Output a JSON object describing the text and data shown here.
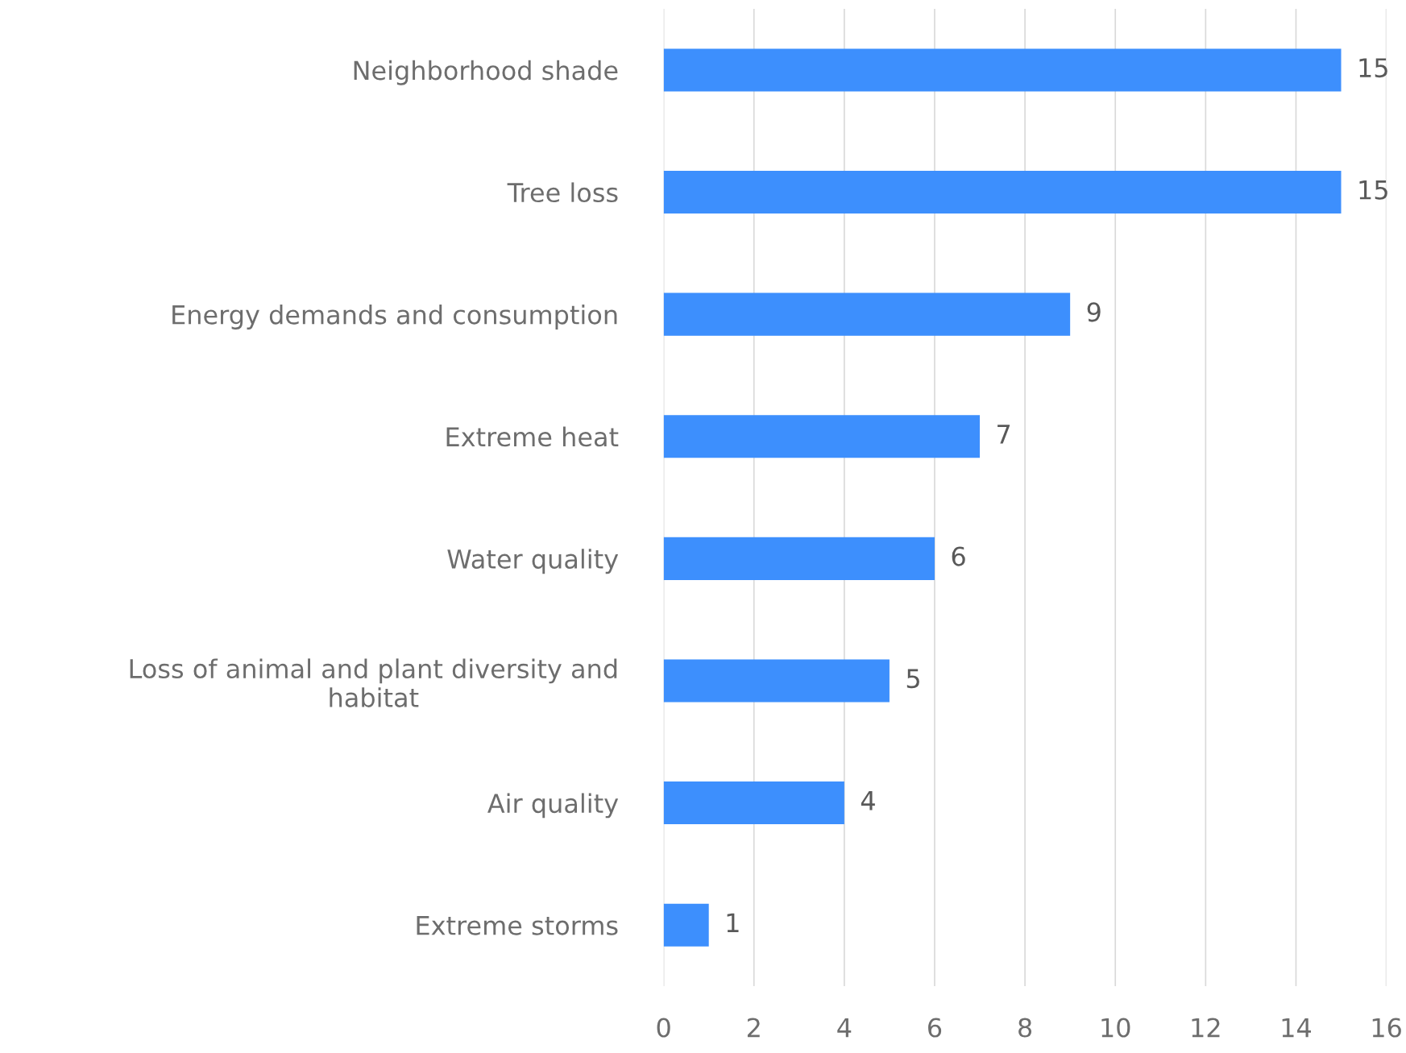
{
  "chart_data": {
    "type": "bar",
    "orientation": "horizontal",
    "categories": [
      "Neighborhood shade",
      "Tree loss",
      "Energy demands and consumption",
      "Extreme heat",
      "Water quality",
      "Loss of animal and plant diversity and\nhabitat",
      "Air quality",
      "Extreme storms"
    ],
    "values": [
      15,
      15,
      9,
      7,
      6,
      5,
      4,
      1
    ],
    "color": "#3d8ffd",
    "xlim": [
      0,
      16
    ],
    "xticks": [
      0,
      2,
      4,
      6,
      8,
      10,
      12,
      14,
      16
    ],
    "grid": "x",
    "data_labels": true,
    "legend": false
  }
}
